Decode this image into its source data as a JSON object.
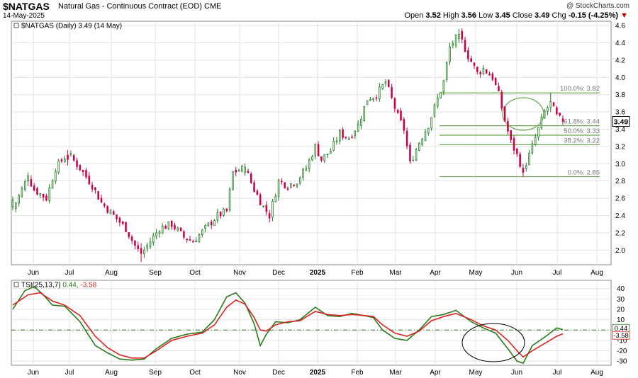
{
  "header": {
    "symbol": "$NATGAS",
    "description": "Natural Gas - Continuous Contract (EOD)",
    "exchange": "CME",
    "date": "14-May-2025",
    "brand": "@ StockCharts.com",
    "open_label": "Open",
    "open": "3.52",
    "high_label": "High",
    "high": "3.56",
    "low_label": "Low",
    "low": "3.45",
    "close_label": "Close",
    "close": "3.49",
    "chg_label": "Chg",
    "chg": "-0.15 (-4.25%)",
    "chg_arrow": "▼"
  },
  "chart_data": [
    {
      "type": "candlestick",
      "legend": "$NATGAS (Daily) 3.49 (14 May)",
      "y_ticks": [
        "4.6",
        "4.4",
        "4.2",
        "4.0",
        "3.8",
        "3.6",
        "3.4",
        "3.2",
        "3.0",
        "2.8",
        "2.6",
        "2.4",
        "2.2",
        "2.0"
      ],
      "ylim": [
        1.83,
        4.65
      ],
      "last_price_label": "3.49",
      "x_months": [
        "Jun",
        "Jul",
        "Aug",
        "Sep",
        "Oct",
        "Nov",
        "Dec",
        "2025",
        "Feb",
        "Mar",
        "Apr",
        "May",
        "Jun",
        "Jul",
        "Aug"
      ],
      "fibonacci": [
        {
          "level": 3.82,
          "label": "100.0%: 3.82"
        },
        {
          "level": 3.44,
          "label": "61.8%: 3.44"
        },
        {
          "level": 3.33,
          "label": "50.0%: 3.33"
        },
        {
          "level": 3.22,
          "label": "38.2%: 3.22"
        },
        {
          "level": 2.85,
          "label": "0.0%: 2.85"
        }
      ],
      "path": [
        [
          0,
          2.48
        ],
        [
          5,
          2.85
        ],
        [
          7,
          2.7
        ],
        [
          11,
          2.6
        ],
        [
          14,
          2.95
        ],
        [
          18,
          3.12
        ],
        [
          22,
          2.95
        ],
        [
          26,
          2.75
        ],
        [
          29,
          2.55
        ],
        [
          33,
          2.4
        ],
        [
          37,
          2.25
        ],
        [
          40,
          2.05
        ],
        [
          42,
          1.95
        ],
        [
          45,
          2.1
        ],
        [
          48,
          2.25
        ],
        [
          52,
          2.3
        ],
        [
          56,
          2.15
        ],
        [
          59,
          2.1
        ],
        [
          63,
          2.25
        ],
        [
          67,
          2.4
        ],
        [
          70,
          2.45
        ],
        [
          72,
          2.9
        ],
        [
          76,
          2.95
        ],
        [
          79,
          2.7
        ],
        [
          82,
          2.5
        ],
        [
          84,
          2.4
        ],
        [
          87,
          2.8
        ],
        [
          90,
          2.75
        ],
        [
          93,
          2.8
        ],
        [
          96,
          2.95
        ],
        [
          99,
          3.2
        ],
        [
          101,
          3.05
        ],
        [
          104,
          3.15
        ],
        [
          107,
          3.35
        ],
        [
          110,
          3.3
        ],
        [
          113,
          3.45
        ],
        [
          116,
          3.75
        ],
        [
          119,
          3.8
        ],
        [
          122,
          3.95
        ],
        [
          124,
          3.75
        ],
        [
          126,
          3.55
        ],
        [
          128,
          3.4
        ],
        [
          130,
          3.0
        ],
        [
          133,
          3.25
        ],
        [
          136,
          3.45
        ],
        [
          139,
          3.75
        ],
        [
          141,
          3.95
        ],
        [
          143,
          4.35
        ],
        [
          146,
          4.5
        ],
        [
          149,
          4.25
        ],
        [
          152,
          4.05
        ],
        [
          154,
          4.1
        ],
        [
          157,
          4.0
        ],
        [
          159,
          3.8
        ],
        [
          161,
          3.5
        ],
        [
          163,
          3.25
        ],
        [
          165,
          3.1
        ],
        [
          167,
          2.92
        ],
        [
          169,
          3.1
        ],
        [
          172,
          3.4
        ],
        [
          174,
          3.6
        ],
        [
          176,
          3.7
        ],
        [
          178,
          3.55
        ],
        [
          180,
          3.49
        ]
      ],
      "series": [
        {
          "name": "Candles",
          "values": [
            {
              "i": 0,
              "open": 2.5,
              "close": 2.58,
              "high": 2.62,
              "low": 2.46
            },
            {
              "i": 5,
              "open": 2.8,
              "close": 2.86,
              "high": 2.9,
              "low": 2.74
            },
            {
              "i": 18,
              "open": 3.1,
              "close": 3.05,
              "high": 3.16,
              "low": 2.98
            },
            {
              "i": 42,
              "open": 2.02,
              "close": 1.96,
              "high": 2.08,
              "low": 1.86
            },
            {
              "i": 76,
              "open": 2.9,
              "close": 2.96,
              "high": 3.0,
              "low": 2.86
            },
            {
              "i": 146,
              "open": 4.45,
              "close": 4.5,
              "high": 4.56,
              "low": 4.4
            },
            {
              "i": 167,
              "open": 2.95,
              "close": 2.9,
              "high": 3.0,
              "low": 2.85
            },
            {
              "i": 176,
              "open": 3.65,
              "close": 3.72,
              "high": 3.82,
              "low": 3.6
            },
            {
              "i": 180,
              "open": 3.52,
              "close": 3.49,
              "high": 3.56,
              "low": 3.45
            }
          ]
        }
      ]
    },
    {
      "type": "line",
      "legend_name": "TSI(25,13,7)",
      "legend_v1": "0.44",
      "legend_v2": "-3.58",
      "y_ticks": [
        "40",
        "30",
        "20",
        "10",
        "0",
        "-10",
        "-20",
        "-30"
      ],
      "ylim": [
        -34,
        48
      ],
      "last_labels": [
        "0.44",
        "-3.58"
      ],
      "x_months": [
        "Jun",
        "Jul",
        "Aug",
        "Sep",
        "Oct",
        "Nov",
        "Dec",
        "2025",
        "Feb",
        "Mar",
        "Apr",
        "May",
        "Jun",
        "Jul",
        "Aug"
      ],
      "series": [
        {
          "name": "TSI",
          "color": "#2a7a1a",
          "values": [
            [
              0,
              20
            ],
            [
              4,
              38
            ],
            [
              7,
              42
            ],
            [
              10,
              34
            ],
            [
              13,
              24
            ],
            [
              17,
              23
            ],
            [
              22,
              8
            ],
            [
              27,
              -15
            ],
            [
              31,
              -22
            ],
            [
              35,
              -28
            ],
            [
              39,
              -29
            ],
            [
              43,
              -28
            ],
            [
              47,
              -18
            ],
            [
              52,
              -8
            ],
            [
              57,
              -4
            ],
            [
              62,
              -2
            ],
            [
              66,
              10
            ],
            [
              70,
              32
            ],
            [
              73,
              36
            ],
            [
              76,
              26
            ],
            [
              79,
              6
            ],
            [
              81,
              -15
            ],
            [
              83,
              -4
            ],
            [
              86,
              8
            ],
            [
              90,
              7
            ],
            [
              94,
              10
            ],
            [
              99,
              22
            ],
            [
              103,
              14
            ],
            [
              107,
              13
            ],
            [
              111,
              16
            ],
            [
              115,
              14
            ],
            [
              118,
              12
            ],
            [
              121,
              0
            ],
            [
              125,
              -8
            ],
            [
              129,
              -10
            ],
            [
              133,
              0
            ],
            [
              137,
              13
            ],
            [
              141,
              15
            ],
            [
              145,
              19
            ],
            [
              150,
              8
            ],
            [
              154,
              2
            ],
            [
              158,
              -3
            ],
            [
              162,
              -18
            ],
            [
              165,
              -30
            ],
            [
              167,
              -32
            ],
            [
              170,
              -15
            ],
            [
              174,
              -7
            ],
            [
              178,
              2
            ],
            [
              180,
              0.44
            ]
          ]
        },
        {
          "name": "Signal",
          "color": "#dd2222",
          "values": [
            [
              0,
              24
            ],
            [
              5,
              34
            ],
            [
              9,
              36
            ],
            [
              13,
              28
            ],
            [
              17,
              24
            ],
            [
              22,
              14
            ],
            [
              27,
              -6
            ],
            [
              31,
              -17
            ],
            [
              35,
              -24
            ],
            [
              39,
              -27
            ],
            [
              43,
              -27
            ],
            [
              47,
              -20
            ],
            [
              52,
              -10
            ],
            [
              57,
              -6
            ],
            [
              62,
              -3
            ],
            [
              66,
              5
            ],
            [
              70,
              22
            ],
            [
              73,
              29
            ],
            [
              76,
              25
            ],
            [
              79,
              12
            ],
            [
              81,
              0
            ],
            [
              83,
              -1
            ],
            [
              86,
              5
            ],
            [
              90,
              8
            ],
            [
              94,
              9
            ],
            [
              99,
              18
            ],
            [
              103,
              15
            ],
            [
              107,
              14
            ],
            [
              111,
              15
            ],
            [
              115,
              14
            ],
            [
              118,
              13
            ],
            [
              121,
              5
            ],
            [
              125,
              -3
            ],
            [
              129,
              -6
            ],
            [
              133,
              -1
            ],
            [
              137,
              9
            ],
            [
              141,
              13
            ],
            [
              145,
              16
            ],
            [
              150,
              10
            ],
            [
              154,
              4
            ],
            [
              158,
              0
            ],
            [
              162,
              -10
            ],
            [
              165,
              -20
            ],
            [
              167,
              -26
            ],
            [
              170,
              -20
            ],
            [
              174,
              -13
            ],
            [
              178,
              -6
            ],
            [
              180,
              -3.58
            ]
          ]
        }
      ]
    }
  ]
}
